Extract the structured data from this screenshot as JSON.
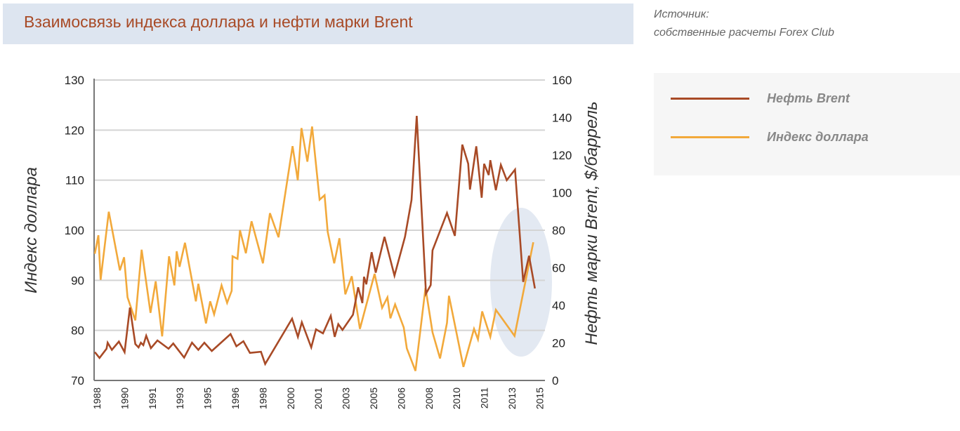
{
  "header": {
    "title": "Взаимосвязь индекса доллара и нефти марки Brent"
  },
  "source": {
    "line1": "Источник:",
    "line2": "собственные расчеты Forex Club"
  },
  "legend": [
    {
      "label": "Нефть Brent",
      "color": "#a84a26"
    },
    {
      "label": "Индекс доллара",
      "color": "#f2a93b"
    }
  ],
  "chart_data": {
    "type": "line",
    "title": "Взаимосвязь индекса доллара и нефти марки Brent",
    "ylabel": "Индекс доллара",
    "y2label": "Нефть марки Brent, $/баррель",
    "ylim": [
      70,
      130
    ],
    "y2lim": [
      0,
      160
    ],
    "yticks": [
      "70",
      "80",
      "90",
      "100",
      "110",
      "120",
      "130"
    ],
    "y2ticks": [
      "0",
      "20",
      "40",
      "60",
      "80",
      "100",
      "120",
      "140",
      "160"
    ],
    "xticks": [
      "1988",
      "1990",
      "1991",
      "1993",
      "1995",
      "1996",
      "1998",
      "2000",
      "2001",
      "2003",
      "2005",
      "2006",
      "2008",
      "2010",
      "2011",
      "2013",
      "2015"
    ],
    "grid": true,
    "legend_position": "right",
    "highlight": "ellipse around 2014–2015",
    "highlight_color": "#e3e9f2",
    "series": [
      {
        "name": "Нефть Brent",
        "axis": "right",
        "color": "#a84a26",
        "points": [
          [
            1987.87,
            15.1
          ],
          [
            1988.16,
            12.0
          ],
          [
            1988.59,
            16.9
          ],
          [
            1988.66,
            20.1
          ],
          [
            1988.92,
            16.3
          ],
          [
            1989.35,
            20.7
          ],
          [
            1989.7,
            15.1
          ],
          [
            1990.03,
            38.8
          ],
          [
            1990.36,
            19.4
          ],
          [
            1990.56,
            17.6
          ],
          [
            1990.7,
            20.1
          ],
          [
            1990.85,
            18.8
          ],
          [
            1991.03,
            23.8
          ],
          [
            1991.32,
            17.2
          ],
          [
            1991.72,
            21.3
          ],
          [
            1992.4,
            16.9
          ],
          [
            1992.69,
            19.7
          ],
          [
            1993.36,
            12.2
          ],
          [
            1993.84,
            20.1
          ],
          [
            1994.23,
            16.3
          ],
          [
            1994.6,
            20.1
          ],
          [
            1995.06,
            15.7
          ],
          [
            1996.21,
            24.7
          ],
          [
            1996.57,
            18.2
          ],
          [
            1997.0,
            20.9
          ],
          [
            1997.4,
            14.7
          ],
          [
            1998.08,
            15.3
          ],
          [
            1998.34,
            8.8
          ],
          [
            1999.99,
            32.9
          ],
          [
            2000.35,
            23.2
          ],
          [
            2000.59,
            31.0
          ],
          [
            2001.17,
            17.6
          ],
          [
            2001.46,
            27.2
          ],
          [
            2001.89,
            25.1
          ],
          [
            2002.37,
            34.4
          ],
          [
            2002.61,
            23.2
          ],
          [
            2002.83,
            30.0
          ],
          [
            2003.09,
            26.9
          ],
          [
            2003.73,
            35.0
          ],
          [
            2004.05,
            49.6
          ],
          [
            2004.31,
            41.2
          ],
          [
            2004.41,
            55.2
          ],
          [
            2004.55,
            51.2
          ],
          [
            2004.88,
            68.3
          ],
          [
            2005.13,
            57.4
          ],
          [
            2005.67,
            76.5
          ],
          [
            2006.28,
            55.8
          ],
          [
            2006.93,
            76.5
          ],
          [
            2007.33,
            96.1
          ],
          [
            2007.65,
            140.9
          ],
          [
            2008.22,
            46.2
          ],
          [
            2008.51,
            50.8
          ],
          [
            2008.62,
            69.3
          ],
          [
            2009.51,
            89.2
          ],
          [
            2009.99,
            77.0
          ],
          [
            2010.45,
            125.6
          ],
          [
            2010.81,
            115.4
          ],
          [
            2010.92,
            101.7
          ],
          [
            2011.31,
            124.7
          ],
          [
            2011.64,
            97.3
          ],
          [
            2011.79,
            115.4
          ],
          [
            2012.07,
            109.4
          ],
          [
            2012.17,
            117.3
          ],
          [
            2012.51,
            101.3
          ],
          [
            2012.82,
            114.8
          ],
          [
            2013.18,
            106.7
          ],
          [
            2013.69,
            112.3
          ],
          [
            2014.19,
            52.5
          ],
          [
            2014.55,
            66.4
          ],
          [
            2014.91,
            49.0
          ]
        ]
      },
      {
        "name": "Индекс доллара",
        "axis": "left",
        "color": "#f2a93b",
        "points": [
          [
            1987.87,
            95.3
          ],
          [
            1988.09,
            99.0
          ],
          [
            1988.23,
            90.1
          ],
          [
            1988.73,
            103.7
          ],
          [
            1989.41,
            92.0
          ],
          [
            1989.67,
            94.6
          ],
          [
            1989.88,
            86.6
          ],
          [
            1990.36,
            82.0
          ],
          [
            1990.75,
            96.1
          ],
          [
            1991.29,
            83.5
          ],
          [
            1991.61,
            89.8
          ],
          [
            1992.01,
            78.8
          ],
          [
            1992.43,
            94.8
          ],
          [
            1992.76,
            89.0
          ],
          [
            1992.9,
            95.8
          ],
          [
            1993.08,
            92.7
          ],
          [
            1993.41,
            97.5
          ],
          [
            1994.08,
            85.8
          ],
          [
            1994.23,
            89.3
          ],
          [
            1994.7,
            81.4
          ],
          [
            1994.96,
            85.8
          ],
          [
            1995.2,
            83.2
          ],
          [
            1995.66,
            89.0
          ],
          [
            1996.0,
            85.5
          ],
          [
            1996.28,
            87.9
          ],
          [
            1996.33,
            94.8
          ],
          [
            1996.64,
            94.3
          ],
          [
            1996.79,
            100.0
          ],
          [
            1997.15,
            95.4
          ],
          [
            1997.5,
            101.8
          ],
          [
            1998.2,
            93.4
          ],
          [
            1998.63,
            103.4
          ],
          [
            1999.16,
            98.6
          ],
          [
            2000.02,
            116.8
          ],
          [
            2000.34,
            110.0
          ],
          [
            2000.57,
            120.4
          ],
          [
            2000.93,
            113.7
          ],
          [
            2001.22,
            120.7
          ],
          [
            2001.68,
            106.1
          ],
          [
            2001.99,
            107.0
          ],
          [
            2002.18,
            99.7
          ],
          [
            2002.58,
            93.4
          ],
          [
            2002.9,
            98.4
          ],
          [
            2003.26,
            87.2
          ],
          [
            2003.66,
            90.8
          ],
          [
            2004.16,
            80.3
          ],
          [
            2005.06,
            91.3
          ],
          [
            2005.52,
            84.5
          ],
          [
            2005.85,
            86.6
          ],
          [
            2006.03,
            82.4
          ],
          [
            2006.32,
            85.2
          ],
          [
            2006.85,
            80.6
          ],
          [
            2007.04,
            76.4
          ],
          [
            2007.57,
            71.9
          ],
          [
            2008.19,
            88.5
          ],
          [
            2008.62,
            79.6
          ],
          [
            2009.08,
            74.4
          ],
          [
            2009.51,
            81.5
          ],
          [
            2009.63,
            86.9
          ],
          [
            2010.52,
            72.7
          ],
          [
            2011.17,
            80.3
          ],
          [
            2011.41,
            78.2
          ],
          [
            2011.67,
            83.8
          ],
          [
            2012.17,
            78.7
          ],
          [
            2012.51,
            84.1
          ],
          [
            2013.66,
            78.9
          ],
          [
            2014.81,
            97.6
          ]
        ]
      }
    ]
  }
}
